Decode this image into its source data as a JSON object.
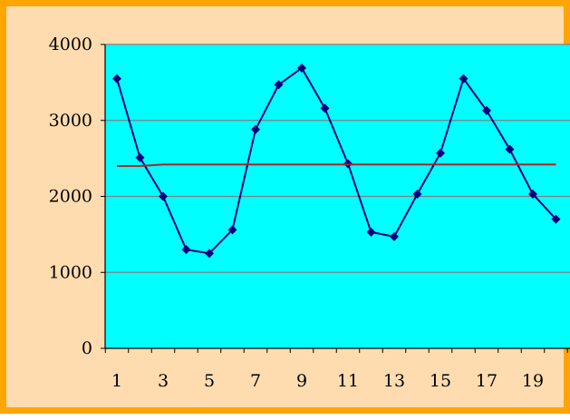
{
  "chart_data": {
    "type": "line",
    "title": "",
    "xlabel": "",
    "ylabel": "",
    "x": [
      1,
      2,
      3,
      4,
      5,
      6,
      7,
      8,
      9,
      10,
      11,
      12,
      13,
      14,
      15,
      16,
      17,
      18,
      19,
      20
    ],
    "xtick_labels": [
      "1",
      "3",
      "5",
      "7",
      "9",
      "11",
      "13",
      "15",
      "17",
      "19"
    ],
    "ylim": [
      0,
      4000
    ],
    "ytick_labels": [
      "0",
      "1000",
      "2000",
      "3000",
      "4000"
    ],
    "grid": true,
    "legend": "none",
    "series": [
      {
        "values": [
          3550,
          2510,
          2000,
          1300,
          1250,
          1560,
          2880,
          3470,
          3690,
          3160,
          2430,
          1530,
          1470,
          2030,
          2570,
          3550,
          3130,
          2620,
          2030,
          1700
        ],
        "color": "#000080",
        "marker": "diamond"
      },
      {
        "values": [
          2400,
          2400,
          2420,
          2420,
          2420,
          2420,
          2420,
          2420,
          2420,
          2420,
          2420,
          2420,
          2420,
          2420,
          2420,
          2420,
          2420,
          2420,
          2420,
          2420
        ],
        "color": "#b22222",
        "marker": "none"
      }
    ],
    "colors": {
      "plot_background": "#00ffff",
      "outer_background": "#ffdcb0",
      "frame_border": "#ffa500",
      "gridline": "#808080"
    }
  }
}
